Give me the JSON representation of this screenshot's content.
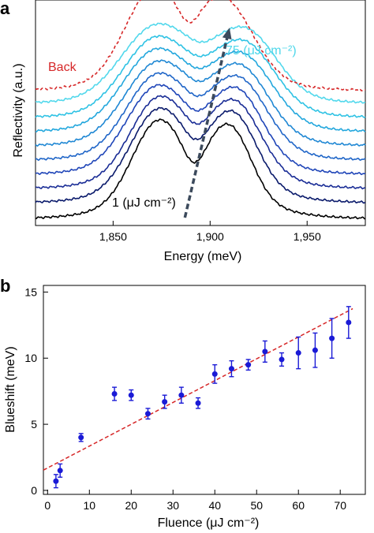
{
  "panels": [
    {
      "letter": "a"
    },
    {
      "letter": "b"
    }
  ],
  "chart_data": [
    {
      "type": "line",
      "panel": "a",
      "xlabel": "Energy (meV)",
      "ylabel": "Reflectivity (a.u.)",
      "xlim": [
        1810,
        1980
      ],
      "xticks": [
        1850,
        1900,
        1950
      ],
      "xtick_labels": [
        "1,850",
        "1,900",
        "1,950"
      ],
      "annotations": {
        "back": "Back",
        "low": "1 (μJ cm⁻²)",
        "high": "75 (μJ cm⁻²)"
      },
      "colors": {
        "back": "#d62728",
        "low_annotation": "#000000",
        "high_annotation": "#4fd7ea",
        "arrow": "#3c4a5c"
      },
      "series": [
        {
          "color": "#000000",
          "offset": 0.0,
          "peak1": {
            "center": 1873,
            "height": 0.95,
            "width": 13
          },
          "peak2": {
            "center": 1910,
            "height": 0.88,
            "width": 11
          },
          "dip_depth": 0.2
        },
        {
          "color": "#0a1a6b",
          "offset": 0.2,
          "peak1": {
            "center": 1873,
            "height": 0.9,
            "width": 14
          },
          "peak2": {
            "center": 1912,
            "height": 0.85,
            "width": 12
          },
          "dip_depth": 0.12
        },
        {
          "color": "#1a2d96",
          "offset": 0.38,
          "peak1": {
            "center": 1873,
            "height": 0.87,
            "width": 14
          },
          "peak2": {
            "center": 1913,
            "height": 0.82,
            "width": 13
          },
          "dip_depth": 0.1
        },
        {
          "color": "#1f45b8",
          "offset": 0.56,
          "peak1": {
            "center": 1872,
            "height": 0.84,
            "width": 15
          },
          "peak2": {
            "center": 1914,
            "height": 0.8,
            "width": 13
          },
          "dip_depth": 0.08
        },
        {
          "color": "#2066c8",
          "offset": 0.74,
          "peak1": {
            "center": 1872,
            "height": 0.81,
            "width": 15
          },
          "peak2": {
            "center": 1915,
            "height": 0.77,
            "width": 14
          },
          "dip_depth": 0.07
        },
        {
          "color": "#2088d4",
          "offset": 0.92,
          "peak1": {
            "center": 1872,
            "height": 0.79,
            "width": 16
          },
          "peak2": {
            "center": 1916,
            "height": 0.74,
            "width": 14
          },
          "dip_depth": 0.06
        },
        {
          "color": "#23a7dd",
          "offset": 1.1,
          "peak1": {
            "center": 1871,
            "height": 0.77,
            "width": 16
          },
          "peak2": {
            "center": 1917,
            "height": 0.72,
            "width": 15
          },
          "dip_depth": 0.05
        },
        {
          "color": "#2ec2e4",
          "offset": 1.28,
          "peak1": {
            "center": 1871,
            "height": 0.75,
            "width": 16
          },
          "peak2": {
            "center": 1918,
            "height": 0.7,
            "width": 15
          },
          "dip_depth": 0.04
        },
        {
          "color": "#52d8ec",
          "offset": 1.46,
          "peak1": {
            "center": 1871,
            "height": 0.73,
            "width": 17
          },
          "peak2": {
            "center": 1919,
            "height": 0.68,
            "width": 15
          },
          "dip_depth": 0.04
        },
        {
          "color": "#d62728",
          "dashed": true,
          "offset": 1.62,
          "peak1": {
            "center": 1870,
            "height": 0.98,
            "width": 14
          },
          "peak2": {
            "center": 1908,
            "height": 0.85,
            "width": 14
          },
          "dip_depth": 0.22
        }
      ],
      "arrow": {
        "from": [
          1887,
          0.05
        ],
        "to": [
          1910,
          2.45
        ]
      }
    },
    {
      "type": "scatter",
      "panel": "b",
      "xlabel": "Fluence (μJ cm⁻²)",
      "ylabel": "Blueshift (meV)",
      "xlim": [
        -1,
        76
      ],
      "ylim": [
        -0.3,
        15.5
      ],
      "xticks": [
        0,
        10,
        20,
        30,
        40,
        50,
        60,
        70
      ],
      "yticks": [
        0,
        5,
        10,
        15
      ],
      "colors": {
        "points": "#1a1ad6",
        "fit": "#d62728"
      },
      "points": [
        {
          "x": 2,
          "y": 0.7,
          "err": 0.5
        },
        {
          "x": 3,
          "y": 1.5,
          "err": 0.5
        },
        {
          "x": 8,
          "y": 4.0,
          "err": 0.3
        },
        {
          "x": 16,
          "y": 7.3,
          "err": 0.5
        },
        {
          "x": 20,
          "y": 7.2,
          "err": 0.4
        },
        {
          "x": 24,
          "y": 5.8,
          "err": 0.4
        },
        {
          "x": 28,
          "y": 6.7,
          "err": 0.5
        },
        {
          "x": 32,
          "y": 7.2,
          "err": 0.6
        },
        {
          "x": 36,
          "y": 6.6,
          "err": 0.4
        },
        {
          "x": 40,
          "y": 8.8,
          "err": 0.7
        },
        {
          "x": 44,
          "y": 9.2,
          "err": 0.6
        },
        {
          "x": 48,
          "y": 9.5,
          "err": 0.4
        },
        {
          "x": 52,
          "y": 10.5,
          "err": 0.8
        },
        {
          "x": 56,
          "y": 9.9,
          "err": 0.5
        },
        {
          "x": 60,
          "y": 10.4,
          "err": 1.2
        },
        {
          "x": 64,
          "y": 10.6,
          "err": 1.3
        },
        {
          "x": 68,
          "y": 11.5,
          "err": 1.5
        },
        {
          "x": 72,
          "y": 12.7,
          "err": 1.2
        }
      ],
      "fit": {
        "slope": 0.165,
        "intercept": 1.7,
        "x_range": [
          -1,
          73
        ]
      }
    }
  ]
}
